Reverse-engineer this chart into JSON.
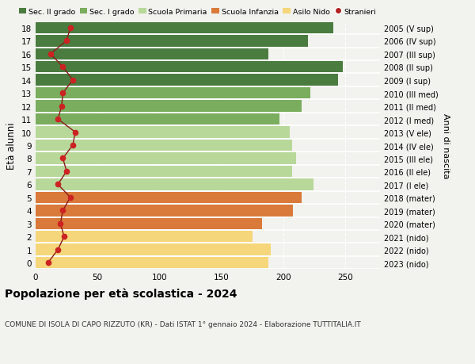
{
  "ages": [
    18,
    17,
    16,
    15,
    14,
    13,
    12,
    11,
    10,
    9,
    8,
    7,
    6,
    5,
    4,
    3,
    2,
    1,
    0
  ],
  "bar_values": [
    240,
    220,
    188,
    248,
    244,
    222,
    215,
    197,
    205,
    207,
    210,
    207,
    224,
    215,
    208,
    183,
    175,
    190,
    188
  ],
  "stranieri_values": [
    28,
    25,
    12,
    22,
    30,
    22,
    21,
    18,
    32,
    30,
    22,
    25,
    18,
    28,
    22,
    20,
    23,
    18,
    10
  ],
  "right_labels": [
    "2005 (V sup)",
    "2006 (IV sup)",
    "2007 (III sup)",
    "2008 (II sup)",
    "2009 (I sup)",
    "2010 (III med)",
    "2011 (II med)",
    "2012 (I med)",
    "2013 (V ele)",
    "2014 (IV ele)",
    "2015 (III ele)",
    "2016 (II ele)",
    "2017 (I ele)",
    "2018 (mater)",
    "2019 (mater)",
    "2020 (mater)",
    "2021 (nido)",
    "2022 (nido)",
    "2023 (nido)"
  ],
  "bar_colors": [
    "#4a7c3f",
    "#4a7c3f",
    "#4a7c3f",
    "#4a7c3f",
    "#4a7c3f",
    "#7aad5e",
    "#7aad5e",
    "#7aad5e",
    "#b8d89a",
    "#b8d89a",
    "#b8d89a",
    "#b8d89a",
    "#b8d89a",
    "#d97a3a",
    "#d97a3a",
    "#d97a3a",
    "#f5d67a",
    "#f5d67a",
    "#f5d67a"
  ],
  "legend_labels": [
    "Sec. II grado",
    "Sec. I grado",
    "Scuola Primaria",
    "Scuola Infanzia",
    "Asilo Nido",
    "Stranieri"
  ],
  "legend_colors": [
    "#4a7c3f",
    "#7aad5e",
    "#b8d89a",
    "#d97a3a",
    "#f5d67a",
    "#b22222"
  ],
  "line_color": "#8b1a1a",
  "dot_color": "#cc2222",
  "ylabel_left": "Età alunni",
  "ylabel_right": "Anni di nascita",
  "title": "Popolazione per età scolastica - 2024",
  "subtitle": "COMUNE DI ISOLA DI CAPO RIZZUTO (KR) - Dati ISTAT 1° gennaio 2024 - Elaborazione TUTTITALIA.IT",
  "xlim": [
    0,
    278
  ],
  "xticks": [
    0,
    50,
    100,
    150,
    200,
    250
  ],
  "background_color": "#f2f2ee",
  "separator_color": "#ffffff",
  "title_fontsize": 10,
  "subtitle_fontsize": 6.5,
  "bar_height": 0.88,
  "ylim": [
    -0.5,
    18.5
  ]
}
